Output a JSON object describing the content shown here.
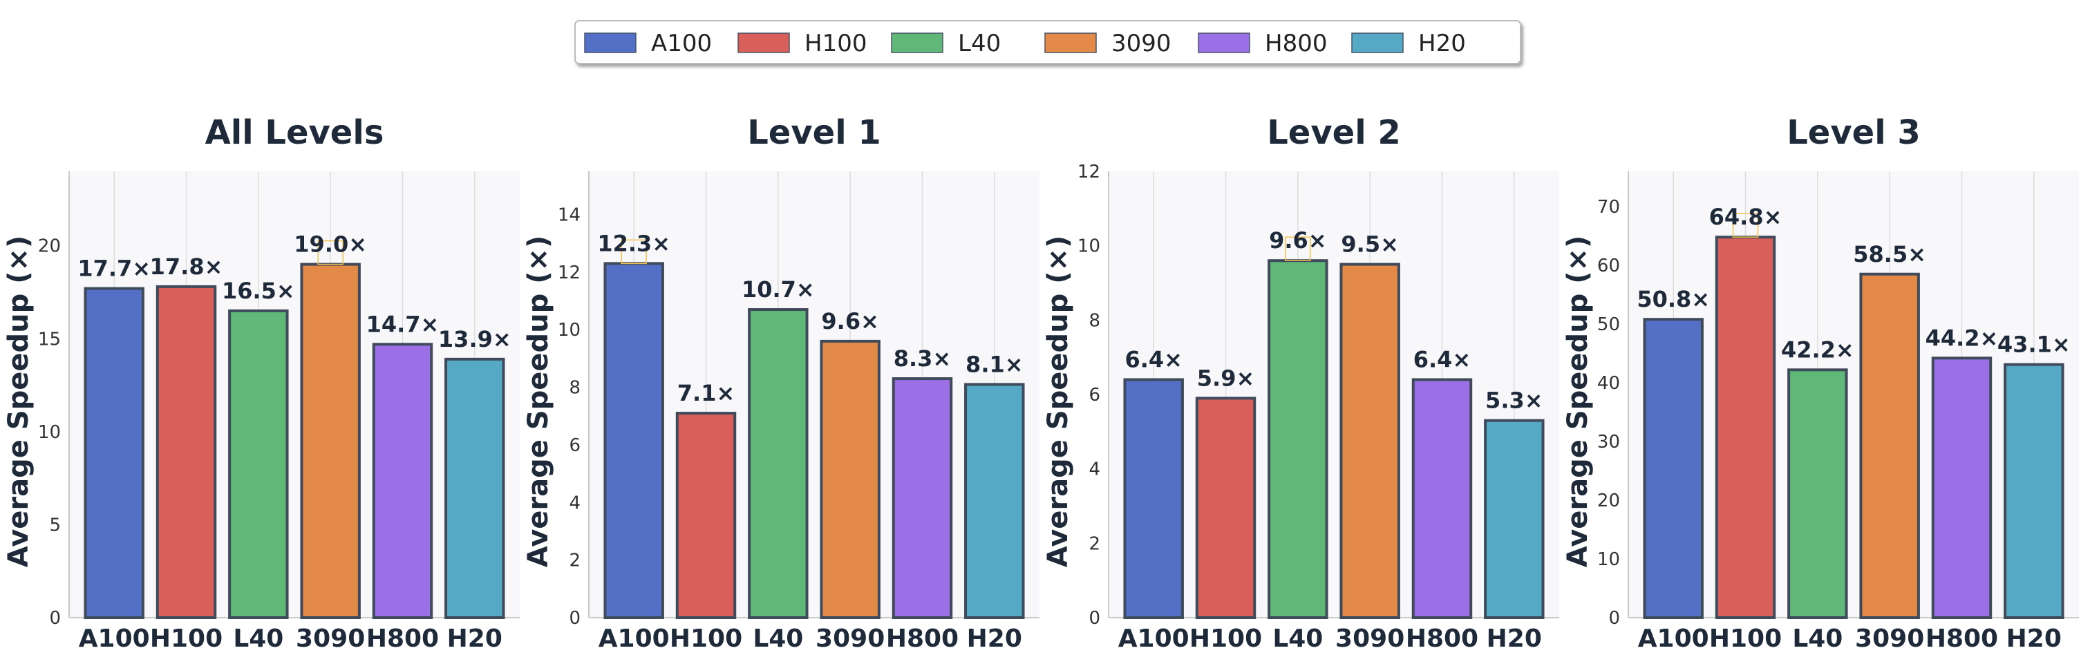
{
  "chart_data": {
    "type": "bar",
    "categories": [
      "A100",
      "H100",
      "L40",
      "3090",
      "H800",
      "H20"
    ],
    "colors": [
      "#5470c6",
      "#d9605a",
      "#5fb878",
      "#e38a48",
      "#9b6fe6",
      "#55a9c4"
    ],
    "highlight_color": "#f2c14e",
    "legend": [
      "A100",
      "H100",
      "L40",
      "3090",
      "H800",
      "H20"
    ],
    "ylabel": "Average Speedup (×)",
    "value_suffix": "×",
    "panels": [
      {
        "title": "All Levels",
        "values": [
          17.7,
          17.8,
          16.5,
          19.0,
          14.7,
          13.9
        ],
        "ylim": [
          0,
          24
        ],
        "ticks": [
          0,
          5,
          10,
          15,
          20
        ],
        "highlight_index": 3
      },
      {
        "title": "Level 1",
        "values": [
          12.3,
          7.1,
          10.7,
          9.6,
          8.3,
          8.1
        ],
        "ylim": [
          0,
          15.5
        ],
        "ticks": [
          0,
          2,
          4,
          6,
          8,
          10,
          12,
          14
        ],
        "highlight_index": 0
      },
      {
        "title": "Level 2",
        "values": [
          6.4,
          5.9,
          9.6,
          9.5,
          6.4,
          5.3
        ],
        "ylim": [
          0,
          12
        ],
        "ticks": [
          0,
          2,
          4,
          6,
          8,
          10,
          12
        ],
        "highlight_index": 2
      },
      {
        "title": "Level 3",
        "values": [
          50.8,
          64.8,
          42.2,
          58.5,
          44.2,
          43.1
        ],
        "ylim": [
          0,
          76
        ],
        "ticks": [
          0,
          10,
          20,
          30,
          40,
          50,
          60,
          70
        ],
        "highlight_index": 1
      }
    ]
  }
}
